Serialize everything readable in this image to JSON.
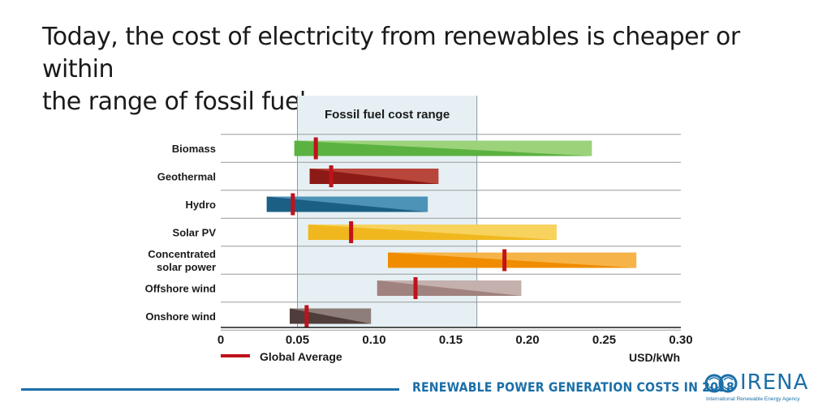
{
  "slide": {
    "title_line1": "Today, the cost of electricity from renewables is cheaper or within",
    "title_line2": "the range of fossil fuels"
  },
  "footer": {
    "report_title": "RENEWABLE POWER GENERATION COSTS IN 2018",
    "logo_word": "IRENA",
    "logo_subtitle": "International Renewable Energy Agency"
  },
  "chart_data": {
    "type": "bar",
    "orientation": "horizontal-range",
    "xlabel": "USD/kWh",
    "xlim": [
      0,
      0.3
    ],
    "xticks": [
      {
        "value": 0,
        "label": "0"
      },
      {
        "value": 0.05,
        "label": "0.05"
      },
      {
        "value": 0.1,
        "label": "0.10"
      },
      {
        "value": 0.15,
        "label": "0.15"
      },
      {
        "value": 0.2,
        "label": "0.20"
      },
      {
        "value": 0.25,
        "label": "0.25"
      },
      {
        "value": 0.3,
        "label": "0.30"
      }
    ],
    "fossil_range": {
      "label": "Fossil fuel cost range",
      "min": 0.05,
      "max": 0.167,
      "color": "#e6f0f4"
    },
    "legend": {
      "label": "Global Average",
      "color": "#c0121b",
      "placement": "bottom-left"
    },
    "series": [
      {
        "name": "Biomass",
        "label_lines": [
          "Biomass"
        ],
        "min": 0.048,
        "max": 0.242,
        "avg": 0.062,
        "light": "#9bd27a",
        "dark": "#5bb240"
      },
      {
        "name": "Geothermal",
        "label_lines": [
          "Geothermal"
        ],
        "min": 0.058,
        "max": 0.142,
        "avg": 0.072,
        "light": "#b8463b",
        "dark": "#8c1a16"
      },
      {
        "name": "Hydro",
        "label_lines": [
          "Hydro"
        ],
        "min": 0.03,
        "max": 0.135,
        "avg": 0.047,
        "light": "#4d92b7",
        "dark": "#1b5f85"
      },
      {
        "name": "Solar PV",
        "label_lines": [
          "Solar PV"
        ],
        "min": 0.057,
        "max": 0.219,
        "avg": 0.085,
        "light": "#f7d25c",
        "dark": "#f0b81e"
      },
      {
        "name": "Concentrated solar power",
        "label_lines": [
          "Concentrated",
          "solar power"
        ],
        "min": 0.109,
        "max": 0.271,
        "avg": 0.185,
        "light": "#f6b448",
        "dark": "#f08c00"
      },
      {
        "name": "Offshore wind",
        "label_lines": [
          "Offshore wind"
        ],
        "min": 0.102,
        "max": 0.196,
        "avg": 0.127,
        "light": "#c4b0ad",
        "dark": "#a0827e"
      },
      {
        "name": "Onshore wind",
        "label_lines": [
          "Onshore wind"
        ],
        "min": 0.045,
        "max": 0.098,
        "avg": 0.056,
        "light": "#8d7e7a",
        "dark": "#4e3d3a"
      }
    ]
  }
}
